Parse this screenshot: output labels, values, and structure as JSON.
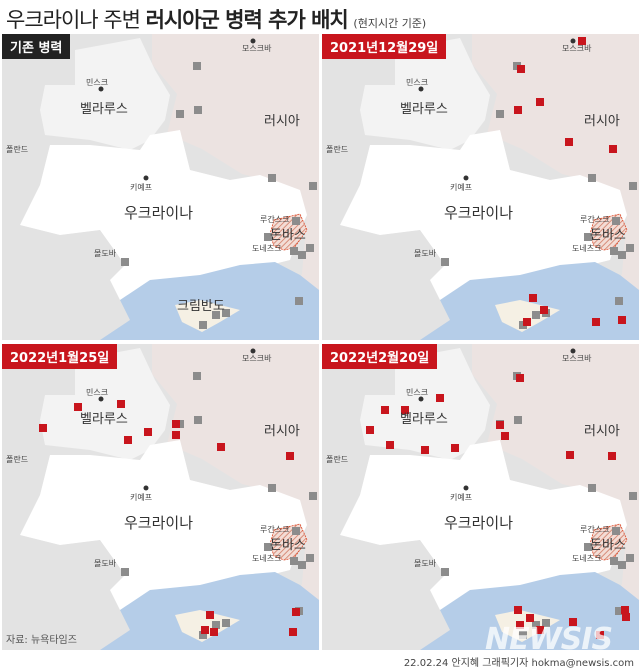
{
  "title": {
    "main_a": "우크라이나 주변 ",
    "main_b": "러시아군 병력 추가 배치",
    "sub": "(현지시간 기준)"
  },
  "panels": [
    {
      "badge": "기존 병력",
      "badge_style": "dark",
      "show_crimea": true,
      "red_markers": 0
    },
    {
      "badge": "2021년12월29일",
      "badge_style": "red",
      "show_crimea": false,
      "red_markers": 11
    },
    {
      "badge": "2022년1월25일",
      "badge_style": "red",
      "show_crimea": false,
      "red_markers": 14
    },
    {
      "badge": "2022년2월20일",
      "badge_style": "red",
      "show_crimea": false,
      "red_markers": 20
    }
  ],
  "labels": {
    "moscow": "모스크바",
    "minsk": "민스크",
    "belarus": "벨라루스",
    "russia": "러시아",
    "poland": "폴란드",
    "kyiv": "키예프",
    "ukraine": "우크라이나",
    "luhansk": "루간스크",
    "donbas": "돈바스",
    "donetsk": "도네츠크",
    "moldova": "몰도바",
    "crimea": "크림반도"
  },
  "source": "자료: 뉴욕타임즈",
  "credit": "22.02.24 안지혜 그래픽기자 hokma@newsis.com",
  "watermark": "NEWSIS",
  "colors": {
    "existing_troops": "#8c8c8c",
    "added_troops": "#c8151d",
    "ukraine": "#ffffff",
    "russia": "#ece3e1",
    "belarus": "#f3f3f3",
    "sea": "#b5cde8",
    "crimea": "#f5f0e4"
  }
}
